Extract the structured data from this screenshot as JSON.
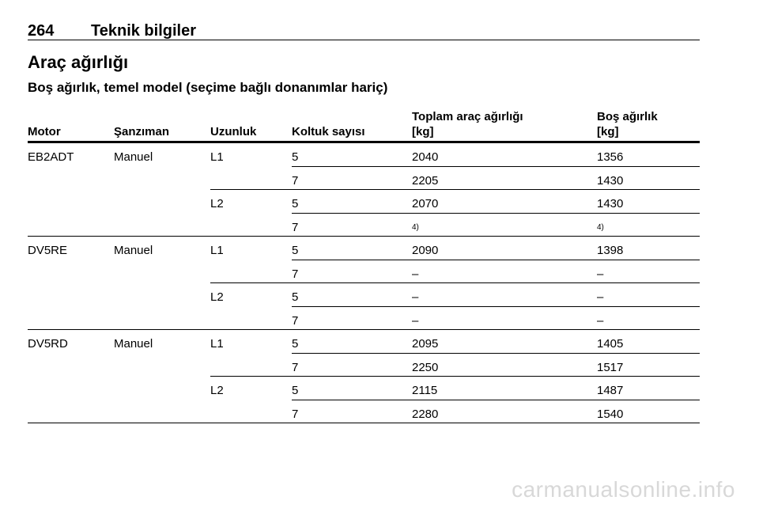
{
  "header": {
    "page_number": "264",
    "chapter": "Teknik bilgiler"
  },
  "section_title": "Araç ağırlığı",
  "subtitle": "Boş ağırlık, temel model (seçime bağlı donanımlar hariç)",
  "table": {
    "columns": [
      {
        "line1": "",
        "line2": "Motor"
      },
      {
        "line1": "",
        "line2": "Şanzıman"
      },
      {
        "line1": "",
        "line2": "Uzunluk"
      },
      {
        "line1": "",
        "line2": "Koltuk sayısı"
      },
      {
        "line1": "Toplam araç ağırlığı",
        "line2": "[kg]"
      },
      {
        "line1": "Boş ağırlık",
        "line2": "[kg]"
      }
    ],
    "rows": [
      [
        "EB2ADT",
        "Manuel",
        "L1",
        "5",
        "2040",
        "1356"
      ],
      [
        "",
        "",
        "",
        "7",
        "2205",
        "1430"
      ],
      [
        "",
        "",
        "L2",
        "5",
        "2070",
        "1430"
      ],
      [
        "",
        "",
        "",
        "7",
        "4)",
        "4)"
      ],
      [
        "DV5RE",
        "Manuel",
        "L1",
        "5",
        "2090",
        "1398"
      ],
      [
        "",
        "",
        "",
        "7",
        "–",
        "–"
      ],
      [
        "",
        "",
        "L2",
        "5",
        "–",
        "–"
      ],
      [
        "",
        "",
        "",
        "7",
        "–",
        "–"
      ],
      [
        "DV5RD",
        "Manuel",
        "L1",
        "5",
        "2095",
        "1405"
      ],
      [
        "",
        "",
        "",
        "7",
        "2250",
        "1517"
      ],
      [
        "",
        "",
        "L2",
        "5",
        "2115",
        "1487"
      ],
      [
        "",
        "",
        "",
        "7",
        "2280",
        "1540"
      ]
    ]
  },
  "watermark": "carmanualsonline.info"
}
